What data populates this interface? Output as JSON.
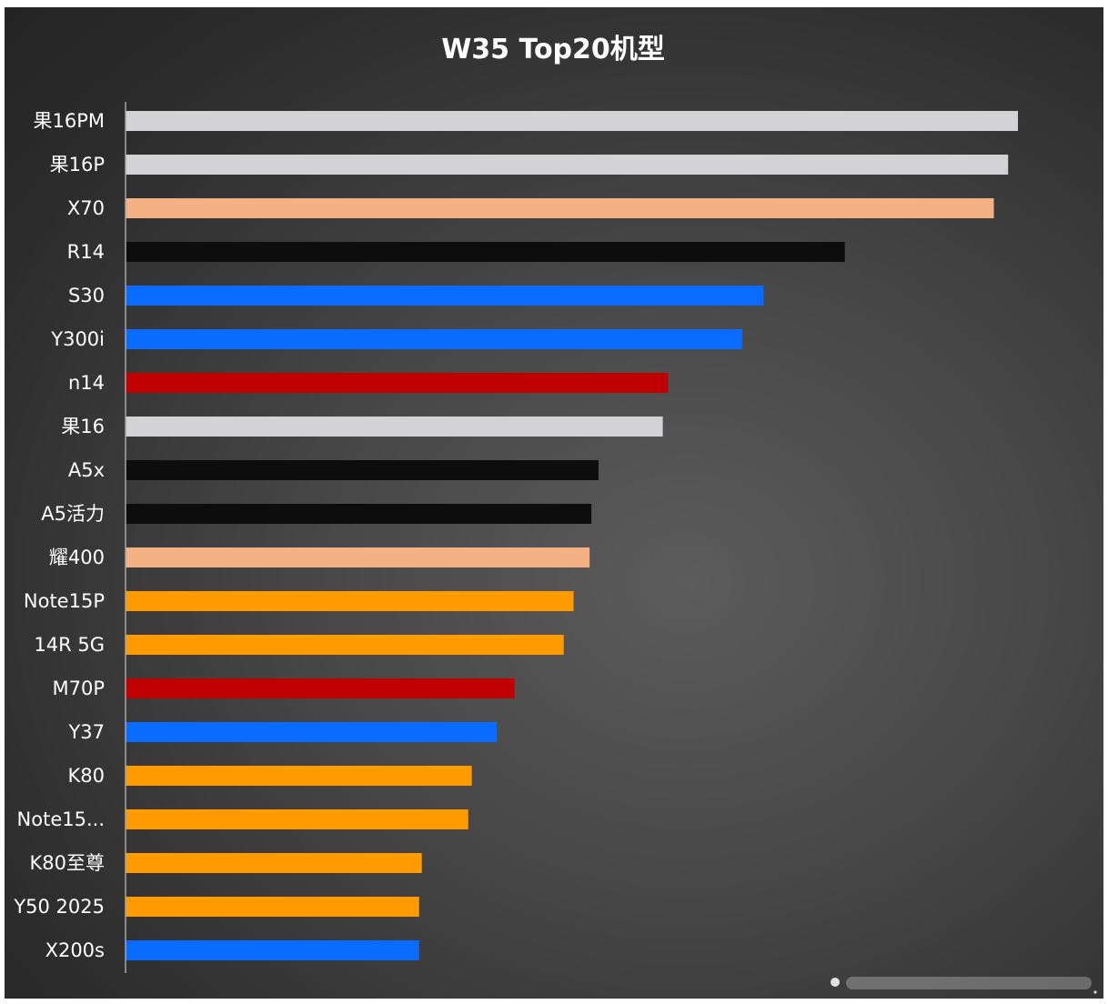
{
  "chart_data": {
    "type": "bar",
    "orientation": "horizontal",
    "title": "W35 Top20机型",
    "xlabel": "",
    "ylabel": "",
    "categories": [
      "果16PM",
      "果16P",
      "X70",
      "R14",
      "S30",
      "Y300i",
      "n14",
      "果16",
      "A5x",
      "A5活力",
      "耀400",
      "Note15P",
      "14R 5G",
      "M70P",
      "Y37",
      "K80",
      "Note15...",
      "K80至尊",
      "Y50 2025",
      "X200s"
    ],
    "values": [
      100,
      98.9,
      97.3,
      80.6,
      71.5,
      69.1,
      60.8,
      60.2,
      53.0,
      52.2,
      52.0,
      50.2,
      49.1,
      43.6,
      41.6,
      38.8,
      38.4,
      33.2,
      32.9,
      32.9
    ],
    "bar_colors": [
      "#d3d2d4",
      "#d3d2d4",
      "#f4b183",
      "#0d0d0d",
      "#0a6cff",
      "#0a6cff",
      "#c00000",
      "#d3d2d4",
      "#0d0d0d",
      "#0d0d0d",
      "#f4b183",
      "#ff9b00",
      "#ff9b00",
      "#c00000",
      "#0a6cff",
      "#ff9b00",
      "#ff9b00",
      "#ff9b00",
      "#ff9b00",
      "#0a6cff"
    ],
    "xlim": [
      0,
      100
    ],
    "grid": false,
    "legend": "none"
  },
  "colors": {
    "background": "#3f3f3f",
    "axis": "#a6a6a6",
    "text": "#ffffff"
  }
}
